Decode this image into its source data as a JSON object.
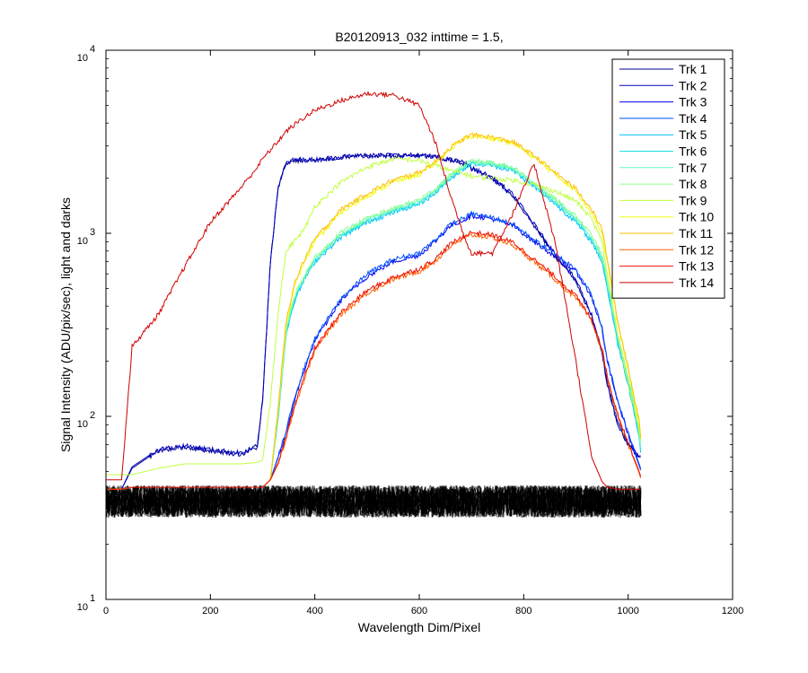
{
  "chart_data": {
    "type": "line",
    "title": "B20120913_032 inttime = 1.5,",
    "xlabel": "Wavelength Dim/Pixel",
    "ylabel": "Signal Intensity (ADU/pix/sec), light and darks",
    "xlim": [
      0,
      1200
    ],
    "ylim": [
      10,
      10000
    ],
    "yscale": "log",
    "grid": false,
    "legend_position": "top-right",
    "x_ticks": [
      "0",
      "200",
      "400",
      "600",
      "800",
      "1000",
      "1200"
    ],
    "y_ticks": [
      {
        "base": "10",
        "exp": "1"
      },
      {
        "base": "10",
        "exp": "2"
      },
      {
        "base": "10",
        "exp": "3"
      },
      {
        "base": "10",
        "exp": "4"
      }
    ],
    "x_template": [
      0,
      30,
      50,
      100,
      150,
      200,
      260,
      290,
      300,
      315,
      330,
      345,
      360,
      380,
      400,
      450,
      500,
      550,
      600,
      630,
      660,
      690,
      700,
      740,
      780,
      820,
      860,
      900,
      930,
      950,
      960,
      980,
      1000,
      1020,
      1025
    ],
    "series": [
      {
        "name": "Trk 1",
        "color": "#00008F",
        "values": [
          40,
          40,
          52,
          65,
          68,
          65,
          62,
          68,
          120,
          700,
          1800,
          2400,
          2500,
          2500,
          2500,
          2600,
          2650,
          2650,
          2650,
          2600,
          2500,
          2400,
          2250,
          2000,
          1600,
          1100,
          750,
          550,
          350,
          220,
          150,
          90,
          70,
          60,
          60
        ]
      },
      {
        "name": "Trk 2",
        "color": "#0000BF",
        "values": [
          40,
          40,
          53,
          66,
          69,
          66,
          63,
          69,
          122,
          710,
          1820,
          2420,
          2520,
          2520,
          2520,
          2620,
          2670,
          2670,
          2670,
          2620,
          2520,
          2420,
          2270,
          2020,
          1620,
          1120,
          770,
          560,
          360,
          225,
          152,
          92,
          71,
          61,
          61
        ]
      },
      {
        "name": "Trk 3",
        "color": "#0000EF",
        "values": [
          40,
          40,
          41,
          41,
          41,
          41,
          41,
          41,
          41,
          45,
          60,
          80,
          120,
          180,
          260,
          430,
          580,
          700,
          760,
          900,
          1100,
          1200,
          1250,
          1200,
          1100,
          900,
          750,
          620,
          450,
          300,
          200,
          120,
          80,
          55,
          50
        ]
      },
      {
        "name": "Trk 4",
        "color": "#0050FF",
        "values": [
          40,
          40,
          41,
          41,
          41,
          41,
          41,
          41,
          41,
          45,
          61,
          82,
          125,
          185,
          265,
          440,
          600,
          720,
          780,
          920,
          1120,
          1230,
          1280,
          1220,
          1120,
          920,
          770,
          640,
          460,
          305,
          205,
          122,
          82,
          56,
          51
        ]
      },
      {
        "name": "Trk 5",
        "color": "#00BFFF",
        "values": [
          40,
          40,
          41,
          41,
          41,
          41,
          41,
          41,
          41,
          45,
          100,
          280,
          420,
          560,
          700,
          950,
          1150,
          1300,
          1450,
          1650,
          2000,
          2300,
          2400,
          2350,
          2200,
          1800,
          1450,
          1150,
          900,
          700,
          500,
          250,
          150,
          80,
          60
        ]
      },
      {
        "name": "Trk 6",
        "color": "#20DFDF",
        "values": [
          40,
          40,
          41,
          41,
          41,
          41,
          41,
          41,
          41,
          45,
          102,
          285,
          430,
          570,
          710,
          970,
          1170,
          1320,
          1470,
          1680,
          2030,
          2330,
          2430,
          2380,
          2230,
          1830,
          1480,
          1180,
          920,
          720,
          520,
          260,
          155,
          82,
          62
        ]
      },
      {
        "name": "Trk 7",
        "color": "#60FFBF",
        "values": [
          40,
          40,
          41,
          41,
          41,
          41,
          41,
          41,
          41,
          45,
          104,
          290,
          440,
          580,
          720,
          990,
          1190,
          1340,
          1500,
          1710,
          2060,
          2360,
          2460,
          2410,
          2260,
          1860,
          1510,
          1210,
          950,
          740,
          540,
          270,
          160,
          85,
          64
        ]
      },
      {
        "name": "Trk 8",
        "color": "#8FFF8F",
        "values": [
          40,
          40,
          41,
          41,
          41,
          41,
          41,
          41,
          41,
          45,
          106,
          295,
          450,
          590,
          735,
          1010,
          1210,
          1360,
          1530,
          1740,
          2090,
          2390,
          2490,
          2440,
          2290,
          1890,
          1540,
          1240,
          980,
          760,
          560,
          280,
          165,
          88,
          66
        ]
      },
      {
        "name": "Trk 9",
        "color": "#BFFF40",
        "values": [
          48,
          48,
          48,
          52,
          55,
          55,
          55,
          56,
          58,
          120,
          380,
          800,
          900,
          1050,
          1400,
          1900,
          2300,
          2550,
          2500,
          2350,
          2200,
          2100,
          2050,
          2000,
          1950,
          1850,
          1700,
          1500,
          1200,
          900,
          600,
          280,
          150,
          90,
          70
        ]
      },
      {
        "name": "Trk 10",
        "color": "#EFFF10",
        "values": [
          40,
          40,
          41,
          41,
          41,
          41,
          41,
          41,
          41,
          45,
          110,
          320,
          500,
          700,
          900,
          1300,
          1600,
          1900,
          2100,
          2400,
          2900,
          3300,
          3400,
          3300,
          3100,
          2600,
          2100,
          1700,
          1300,
          1000,
          700,
          320,
          180,
          95,
          72
        ]
      },
      {
        "name": "Trk 11",
        "color": "#FFBF00",
        "values": [
          40,
          40,
          41,
          41,
          41,
          41,
          41,
          41,
          41,
          45,
          112,
          330,
          520,
          720,
          930,
          1350,
          1650,
          1950,
          2150,
          2450,
          2950,
          3350,
          3450,
          3350,
          3150,
          2650,
          2150,
          1750,
          1350,
          1050,
          730,
          330,
          185,
          98,
          74
        ]
      },
      {
        "name": "Trk 12",
        "color": "#FF6000",
        "values": [
          40,
          40,
          41,
          41,
          41,
          41,
          41,
          41,
          41,
          45,
          55,
          75,
          110,
          160,
          230,
          360,
          470,
          560,
          620,
          700,
          850,
          950,
          980,
          950,
          860,
          700,
          560,
          440,
          330,
          230,
          160,
          100,
          70,
          50,
          45
        ]
      },
      {
        "name": "Trk 13",
        "color": "#EF1000",
        "values": [
          40,
          40,
          41,
          41,
          41,
          41,
          41,
          41,
          41,
          45,
          56,
          77,
          113,
          165,
          235,
          370,
          485,
          575,
          640,
          720,
          875,
          980,
          1010,
          980,
          890,
          720,
          580,
          455,
          340,
          238,
          165,
          103,
          72,
          51,
          46
        ]
      },
      {
        "name": "Trk 14",
        "color": "#CF0000",
        "values": [
          45,
          45,
          240,
          360,
          650,
          1150,
          1800,
          2300,
          2550,
          2850,
          3200,
          3600,
          3900,
          4300,
          4700,
          5300,
          5800,
          5700,
          5000,
          3200,
          1600,
          900,
          780,
          780,
          1300,
          2400,
          900,
          200,
          60,
          44,
          41,
          40,
          40,
          40,
          40
        ]
      }
    ],
    "dark_band": {
      "x_range": [
        0,
        1025
      ],
      "y_range": [
        28,
        42
      ],
      "color": "#000000"
    }
  }
}
